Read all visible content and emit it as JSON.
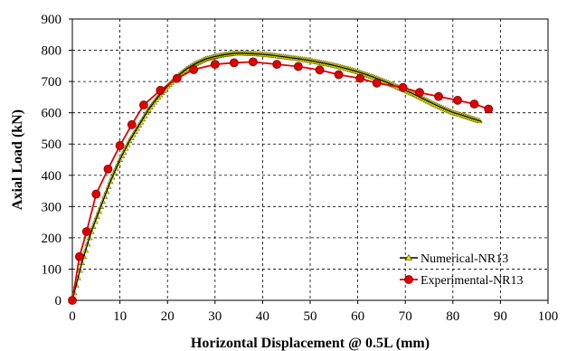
{
  "chart_data": {
    "type": "line",
    "title": "",
    "xlabel": "Horizontal Displacement @ 0.5L (mm)",
    "ylabel": "Axial Load (kN)",
    "xlim": [
      0,
      100
    ],
    "ylim": [
      0,
      900
    ],
    "xticks": [
      0,
      10,
      20,
      30,
      40,
      50,
      60,
      70,
      80,
      90,
      100
    ],
    "yticks": [
      0,
      100,
      200,
      300,
      400,
      500,
      600,
      700,
      800,
      900
    ],
    "x_tick_labels": [
      "0",
      "10",
      "20",
      "30",
      "40",
      "50",
      "60",
      "70",
      "80",
      "90",
      "100"
    ],
    "y_tick_labels": [
      "0",
      "100",
      "200",
      "300",
      "400",
      "500",
      "600",
      "700",
      "800",
      "900"
    ],
    "grid": true,
    "grid_style": "dashed",
    "legend_position": "bottom-right",
    "series": [
      {
        "name": "Numerical-NR13",
        "color": "#000000",
        "marker_color": "#e6e600",
        "marker": "triangle",
        "x": [
          0,
          2,
          4,
          6,
          8,
          10,
          12,
          14,
          16,
          18,
          20,
          22,
          24,
          26,
          28,
          30,
          32,
          34,
          36,
          38,
          40,
          42,
          44,
          46,
          48,
          50,
          52,
          54,
          56,
          58,
          60,
          62,
          64,
          66,
          68,
          70,
          72,
          74,
          76,
          78,
          80,
          82,
          84,
          86
        ],
        "y": [
          0,
          120,
          220,
          300,
          380,
          450,
          510,
          560,
          610,
          650,
          685,
          715,
          740,
          758,
          772,
          780,
          786,
          790,
          790,
          789,
          787,
          784,
          780,
          776,
          772,
          767,
          761,
          755,
          748,
          740,
          731,
          721,
          710,
          698,
          685,
          672,
          658,
          643,
          628,
          614,
          601,
          592,
          582,
          572
        ]
      },
      {
        "name": "Experimental-NR13",
        "color": "#e00000",
        "marker_color": "#e00000",
        "marker": "circle",
        "x": [
          0,
          1.5,
          3,
          5,
          7.5,
          10,
          12.5,
          15,
          18.5,
          22,
          25.5,
          30,
          34,
          38,
          43,
          47.5,
          52,
          56,
          60.5,
          64,
          69.5,
          73,
          77,
          81,
          84.5,
          87.5
        ],
        "y": [
          0,
          140,
          220,
          340,
          420,
          495,
          562,
          625,
          672,
          710,
          738,
          755,
          760,
          763,
          755,
          748,
          737,
          722,
          710,
          695,
          681,
          665,
          652,
          640,
          628,
          612
        ]
      }
    ]
  }
}
